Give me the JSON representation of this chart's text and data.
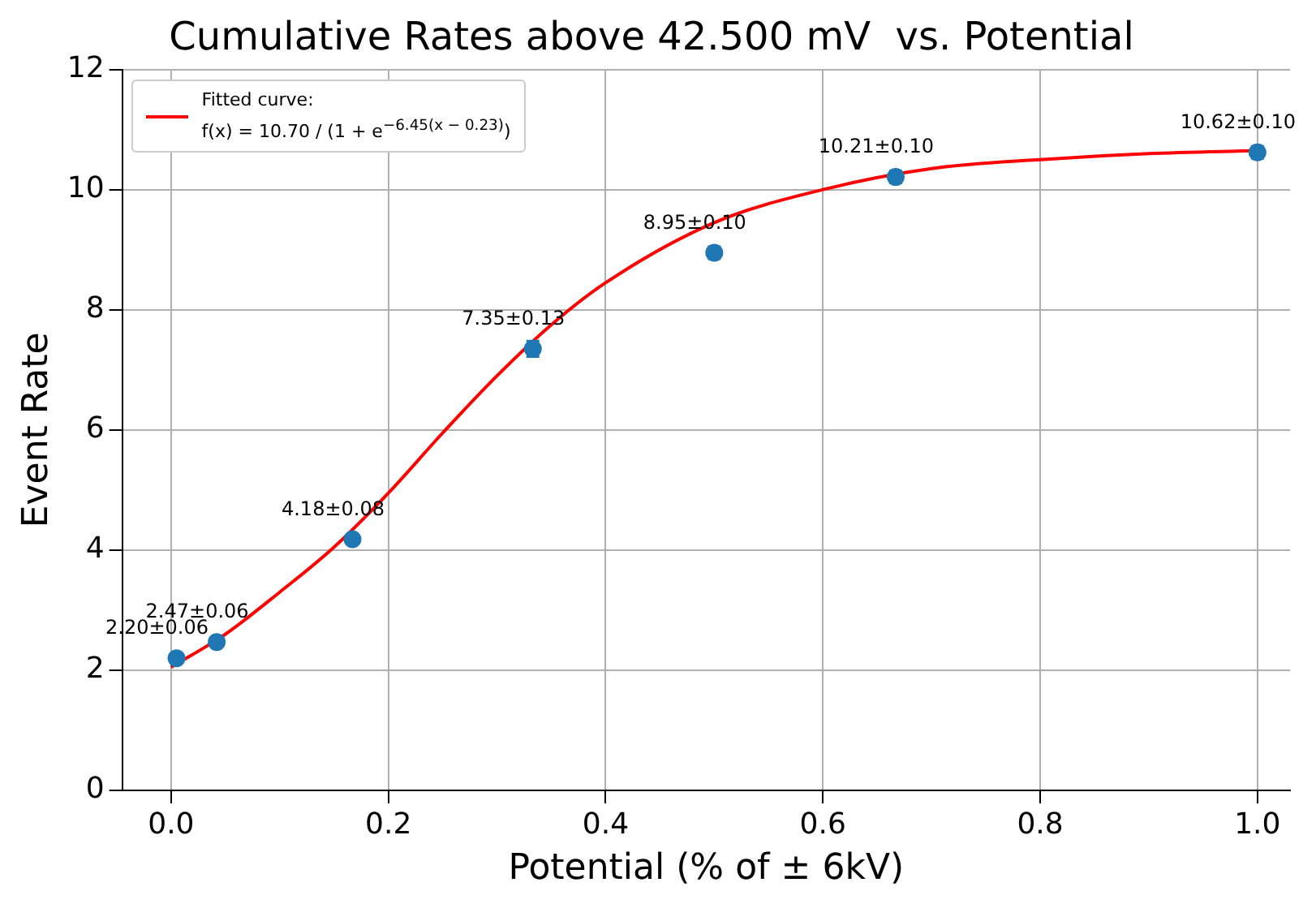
{
  "chart_data": {
    "type": "scatter",
    "title": "Cumulative Rates above 42.500 mV  vs. Potential",
    "xlabel": "Potential (% of ± 6kV)",
    "ylabel": "Event Rate",
    "xlim": [
      -0.045,
      1.03
    ],
    "ylim": [
      0,
      12
    ],
    "xticks": [
      {
        "value": 0,
        "label": "0.0"
      },
      0.2,
      0.4,
      0.6,
      0.8,
      {
        "value": 1,
        "label": "1.0"
      }
    ],
    "yticks": [
      0,
      2,
      4,
      6,
      8,
      10,
      12
    ],
    "grid": true,
    "legend": "top left",
    "series": [
      {
        "marker": "circle",
        "color": "#1f77b4",
        "x": [
          0.005,
          0.042,
          0.167,
          0.333,
          0.5,
          0.667,
          1.0
        ],
        "values": [
          2.2,
          2.47,
          4.18,
          7.35,
          8.95,
          10.21,
          10.62
        ],
        "errors": [
          0.06,
          0.06,
          0.08,
          0.13,
          0.1,
          0.1,
          0.1
        ],
        "value_labels": [
          "2.20±0.06",
          "2.47±0.06",
          "4.18±0.08",
          "7.35±0.13",
          "8.95±0.10",
          "10.21±0.10",
          "10.62±0.10"
        ]
      },
      {
        "type": "line",
        "marker": "none",
        "name": "Fitted curve:\nf(x) = 10.70 / (1 + e$^{−6.45(x − 0.23)}$)",
        "color": "#ff0000",
        "x": [
          0,
          0.05,
          0.1,
          0.15,
          0.2,
          0.25,
          0.3,
          0.35,
          0.4,
          0.5,
          0.6,
          0.7,
          0.8,
          0.9,
          1.0
        ],
        "values": [
          2.05,
          2.6,
          3.3,
          4.05,
          4.95,
          5.95,
          6.9,
          7.75,
          8.45,
          9.45,
          10.0,
          10.35,
          10.5,
          10.6,
          10.65
        ]
      }
    ]
  }
}
